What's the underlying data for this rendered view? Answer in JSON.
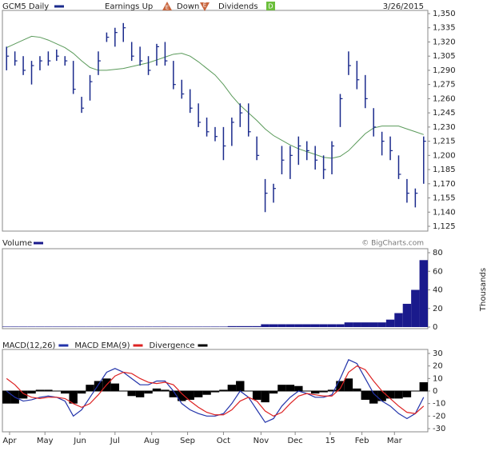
{
  "header": {
    "title": "GCM5 Daily",
    "earnings_label": "Earnings Up",
    "earnings_icon": "E",
    "down_label": "Down",
    "down_icon": "E",
    "dividends_label": "Dividends",
    "dividends_icon": "D",
    "date": "3/26/2015",
    "credit": "© BigCharts.com"
  },
  "chart_data": [
    {
      "type": "ohlc",
      "xlim": [
        -0.5,
        50.5
      ],
      "ylim": [
        1125,
        1350
      ],
      "yticks": [
        {
          "value": 1350,
          "label": "1,350"
        },
        {
          "value": 1335,
          "label": "1,335"
        },
        {
          "value": 1320,
          "label": "1,320"
        },
        {
          "value": 1305,
          "label": "1,305"
        },
        {
          "value": 1290,
          "label": "1,290"
        },
        {
          "value": 1275,
          "label": "1,275"
        },
        {
          "value": 1260,
          "label": "1,260"
        },
        {
          "value": 1245,
          "label": "1,245"
        },
        {
          "value": 1230,
          "label": "1,230"
        },
        {
          "value": 1215,
          "label": "1,215"
        },
        {
          "value": 1200,
          "label": "1,200"
        },
        {
          "value": 1185,
          "label": "1,185"
        },
        {
          "value": 1170,
          "label": "1,170"
        },
        {
          "value": 1155,
          "label": "1,155"
        },
        {
          "value": 1140,
          "label": "1,140"
        },
        {
          "value": 1125,
          "label": "1,125"
        }
      ],
      "series": [
        {
          "name": "GCM5 Daily",
          "color": "#1a2a8c",
          "high": [
            1315,
            1310,
            1305,
            1300,
            1305,
            1310,
            1312,
            1305,
            1300,
            1262,
            1285,
            1310,
            1330,
            1335,
            1340,
            1320,
            1315,
            1305,
            1318,
            1320,
            1300,
            1280,
            1270,
            1255,
            1240,
            1230,
            1230,
            1240,
            1255,
            1255,
            1220,
            1175,
            1170,
            1210,
            1210,
            1220,
            1215,
            1210,
            1200,
            1215,
            1265,
            1310,
            1300,
            1285,
            1250,
            1225,
            1220,
            1200,
            1175,
            1165,
            1220
          ],
          "low": [
            1290,
            1295,
            1285,
            1275,
            1290,
            1295,
            1300,
            1295,
            1265,
            1245,
            1258,
            1285,
            1320,
            1315,
            1320,
            1300,
            1295,
            1285,
            1295,
            1295,
            1270,
            1260,
            1245,
            1230,
            1220,
            1215,
            1195,
            1210,
            1230,
            1220,
            1195,
            1140,
            1150,
            1180,
            1175,
            1190,
            1195,
            1185,
            1175,
            1180,
            1230,
            1285,
            1270,
            1250,
            1220,
            1200,
            1195,
            1175,
            1150,
            1145,
            1170
          ],
          "close": [
            1305,
            1300,
            1290,
            1295,
            1300,
            1300,
            1305,
            1300,
            1270,
            1250,
            1278,
            1300,
            1325,
            1330,
            1335,
            1305,
            1300,
            1290,
            1315,
            1300,
            1275,
            1265,
            1250,
            1235,
            1225,
            1220,
            1210,
            1235,
            1245,
            1225,
            1200,
            1160,
            1165,
            1195,
            1200,
            1210,
            1205,
            1195,
            1185,
            1210,
            1260,
            1295,
            1280,
            1260,
            1230,
            1215,
            1205,
            1180,
            1160,
            1160,
            1215
          ]
        }
      ],
      "ma": {
        "color": "#5a9a5a",
        "values": [
          1314,
          1318,
          1322,
          1326,
          1325,
          1322,
          1318,
          1314,
          1308,
          1300,
          1293,
          1290,
          1290,
          1291,
          1292,
          1294,
          1296,
          1298,
          1301,
          1304,
          1307,
          1308,
          1305,
          1299,
          1292,
          1285,
          1275,
          1263,
          1253,
          1245,
          1237,
          1228,
          1221,
          1216,
          1211,
          1207,
          1204,
          1201,
          1198,
          1197,
          1199,
          1205,
          1214,
          1223,
          1229,
          1231,
          1231,
          1231,
          1228,
          1225,
          1222
        ]
      }
    },
    {
      "type": "bar",
      "title": "Volume",
      "y_label": "Thousands",
      "color": "#1a1a8c",
      "xlim": [
        -0.5,
        50.5
      ],
      "ylim": [
        0,
        80
      ],
      "yticks": [
        80,
        60,
        40,
        20,
        0
      ],
      "values": [
        0.5,
        0.5,
        0.5,
        0.5,
        0.5,
        0.5,
        0.5,
        0.5,
        0.5,
        0.5,
        0.5,
        0.5,
        0.5,
        0.5,
        0.5,
        0.5,
        0.5,
        0.5,
        0.5,
        0.5,
        0.5,
        0.5,
        0.5,
        0.5,
        0.5,
        0.5,
        0.5,
        1,
        1,
        1,
        1,
        3,
        3,
        3,
        3,
        3,
        3,
        3,
        3,
        3,
        3,
        5,
        5,
        5,
        5,
        5,
        8,
        15,
        25,
        40,
        72
      ]
    },
    {
      "type": "macd",
      "xlim": [
        -0.5,
        50.5
      ],
      "ylim": [
        -30,
        30
      ],
      "yticks": [
        30,
        20,
        10,
        0,
        -10,
        -20,
        -30
      ],
      "xticks": [
        {
          "value": 0.36,
          "label": "Apr"
        },
        {
          "value": 4.6,
          "label": "May"
        },
        {
          "value": 8.8,
          "label": "Jun"
        },
        {
          "value": 13.0,
          "label": "Jul"
        },
        {
          "value": 17.4,
          "label": "Aug"
        },
        {
          "value": 21.7,
          "label": "Sep"
        },
        {
          "value": 26.0,
          "label": "Oct"
        },
        {
          "value": 30.5,
          "label": "Nov"
        },
        {
          "value": 34.6,
          "label": "Dec"
        },
        {
          "value": 38.8,
          "label": "15"
        },
        {
          "value": 42.6,
          "label": "Feb"
        },
        {
          "value": 46.5,
          "label": "Mar"
        }
      ],
      "series": [
        {
          "name": "MACD(12,26)",
          "color": "#2233aa",
          "values": [
            0,
            -5,
            -8,
            -7,
            -5,
            -4,
            -5,
            -8,
            -20,
            -15,
            -5,
            5,
            15,
            18,
            15,
            10,
            5,
            5,
            8,
            8,
            0,
            -10,
            -15,
            -18,
            -20,
            -20,
            -18,
            -10,
            0,
            -5,
            -15,
            -25,
            -22,
            -12,
            -5,
            0,
            -2,
            -5,
            -5,
            -3,
            10,
            25,
            22,
            10,
            -2,
            -8,
            -12,
            -18,
            -22,
            -18,
            -5
          ]
        },
        {
          "name": "MACD EMA(9)",
          "color": "#dd2222",
          "values": [
            10,
            5,
            -2,
            -5,
            -6,
            -5,
            -5,
            -6,
            -10,
            -13,
            -10,
            -3,
            5,
            12,
            15,
            14,
            10,
            7,
            6,
            7,
            5,
            -2,
            -8,
            -13,
            -17,
            -19,
            -19,
            -15,
            -8,
            -5,
            -8,
            -16,
            -20,
            -17,
            -10,
            -4,
            -2,
            -3,
            -4,
            -4,
            2,
            15,
            20,
            17,
            8,
            0,
            -6,
            -12,
            -17,
            -18,
            -12
          ]
        },
        {
          "name": "Divergence",
          "color": "#000000",
          "values": [
            -10,
            -10,
            -6,
            -2,
            1,
            1,
            0,
            -2,
            -10,
            -2,
            5,
            8,
            10,
            6,
            0,
            -4,
            -5,
            -2,
            2,
            1,
            -5,
            -8,
            -7,
            -5,
            -3,
            -1,
            1,
            5,
            8,
            0,
            -7,
            -9,
            -2,
            5,
            5,
            4,
            0,
            -2,
            -1,
            1,
            8,
            10,
            2,
            -7,
            -10,
            -8,
            -6,
            -6,
            -5,
            0,
            7
          ]
        }
      ]
    }
  ]
}
